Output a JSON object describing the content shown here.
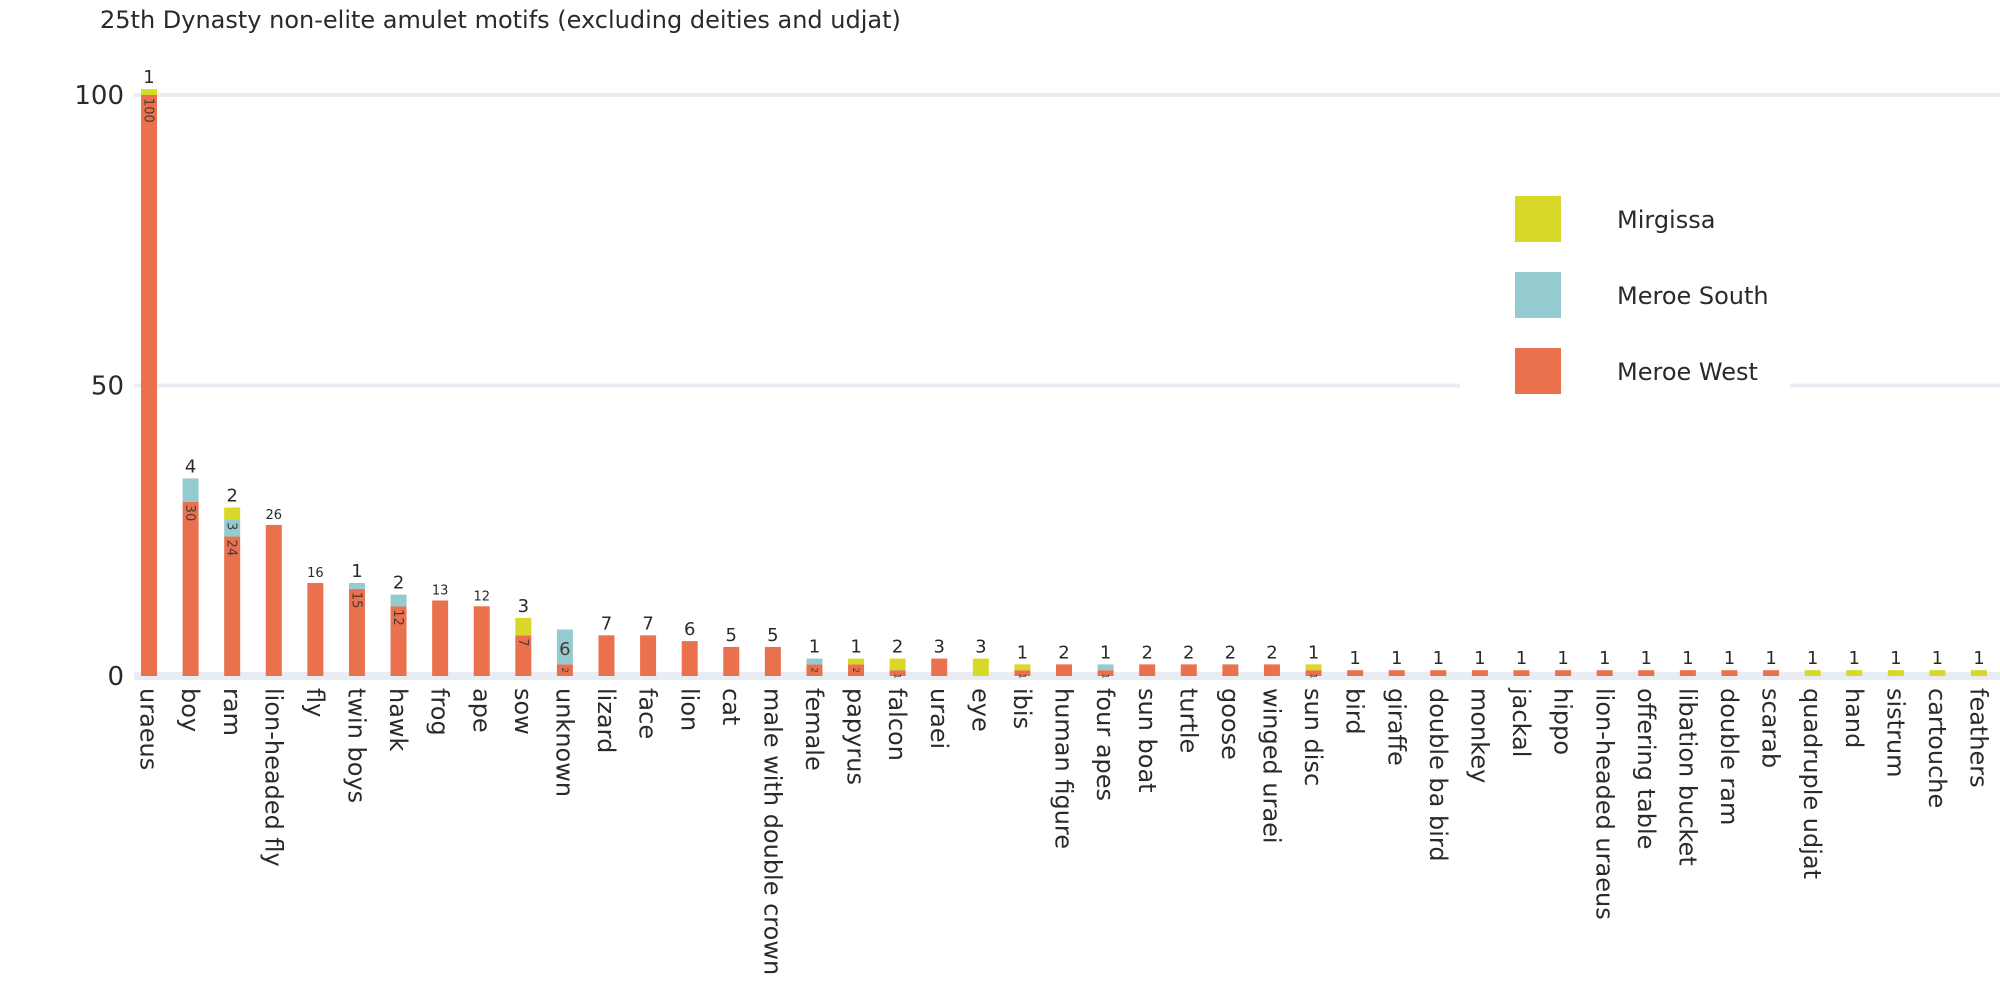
{
  "chart_data": {
    "type": "bar",
    "stacked": true,
    "title": "25th Dynasty non-elite amulet motifs (excluding deities and udjat)",
    "xlabel": "",
    "ylabel": "",
    "ylim": [
      0,
      104
    ],
    "yticks": [
      0,
      50,
      100
    ],
    "grid": true,
    "legend_position": "top-right",
    "categories": [
      "uraeus",
      "boy",
      "ram",
      "lion-headed fly",
      "fly",
      "twin boys",
      "hawk",
      "frog",
      "ape",
      "sow",
      "unknown",
      "lizard",
      "face",
      "lion",
      "cat",
      "male with double crown",
      "female",
      "papyrus",
      "falcon",
      "uraei",
      "eye",
      "ibis",
      "human figure",
      "four apes",
      "sun boat",
      "turtle",
      "goose",
      "winged uraei",
      "sun disc",
      "bird",
      "giraffe",
      "double ba bird",
      "monkey",
      "jackal",
      "hippo",
      "lion-headed uraeus",
      "offering table",
      "libation bucket",
      "double ram",
      "scarab",
      "quadruple udjat",
      "hand",
      "sistrum",
      "cartouche",
      "feathers"
    ],
    "series": [
      {
        "name": "Meroe West",
        "color": "#e9714d",
        "values": [
          100,
          30,
          24,
          26,
          16,
          15,
          12,
          13,
          12,
          7,
          2,
          7,
          7,
          6,
          5,
          5,
          2,
          2,
          1,
          3,
          0,
          1,
          2,
          1,
          2,
          2,
          2,
          2,
          1,
          1,
          1,
          1,
          1,
          1,
          1,
          1,
          1,
          1,
          1,
          1,
          0,
          0,
          0,
          0,
          0
        ]
      },
      {
        "name": "Meroe South",
        "color": "#93cbd1",
        "values": [
          0,
          4,
          3,
          0,
          0,
          1,
          2,
          0,
          0,
          0,
          6,
          0,
          0,
          0,
          0,
          0,
          1,
          0,
          0,
          0,
          0,
          0,
          0,
          1,
          0,
          0,
          0,
          0,
          0,
          0,
          0,
          0,
          0,
          0,
          0,
          0,
          0,
          0,
          0,
          0,
          0,
          0,
          0,
          0,
          0
        ]
      },
      {
        "name": "Mirgissa",
        "color": "#d7d827",
        "values": [
          1,
          0,
          2,
          0,
          0,
          0,
          0,
          0,
          0,
          3,
          0,
          0,
          0,
          0,
          0,
          0,
          0,
          1,
          2,
          0,
          3,
          1,
          0,
          0,
          0,
          0,
          0,
          0,
          1,
          0,
          0,
          0,
          0,
          0,
          0,
          0,
          0,
          0,
          0,
          0,
          1,
          1,
          1,
          1,
          1
        ]
      }
    ]
  },
  "legend_order": [
    "Mirgissa",
    "Meroe South",
    "Meroe West"
  ],
  "colors": {
    "grid": "#e8edf4",
    "text": "#2a2a2a",
    "inside_label": "#4a3a30"
  }
}
